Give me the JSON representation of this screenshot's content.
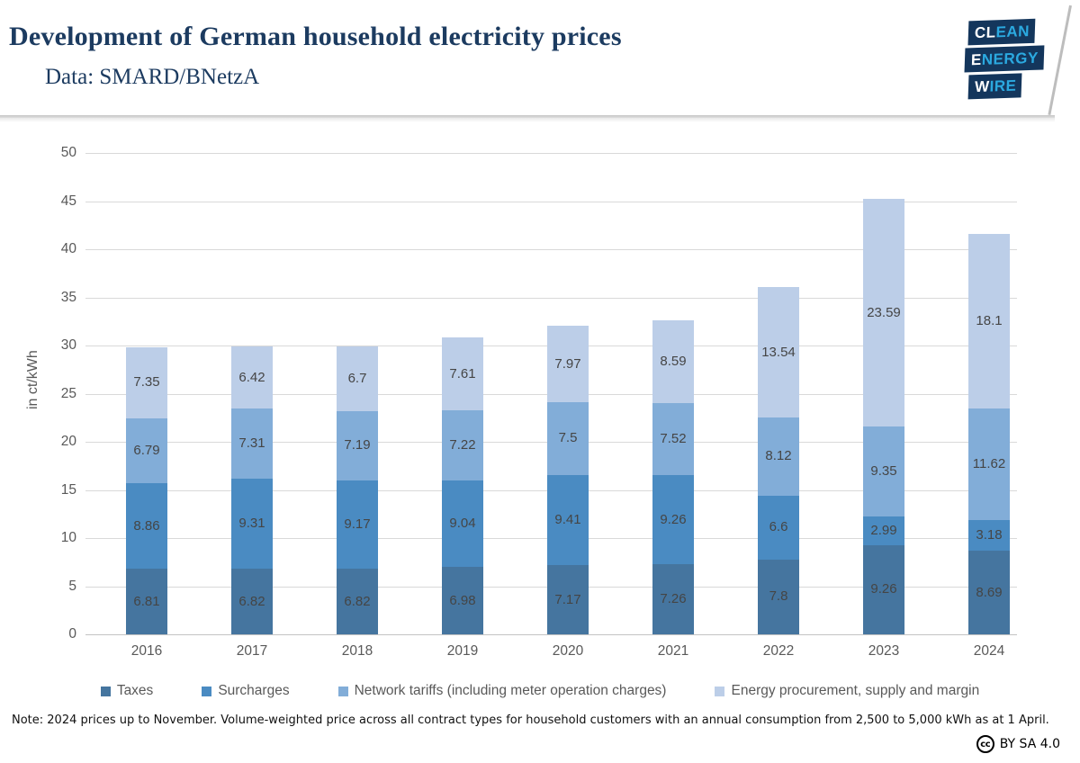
{
  "header": {
    "title": "Development of German household electricity prices",
    "subtitle": "Data: SMARD/BNetzA",
    "logo": {
      "lines": [
        {
          "white": "CL",
          "blue": "EAN"
        },
        {
          "white": "E",
          "blue": "NERGY"
        },
        {
          "white": "W",
          "blue": "IRE"
        }
      ],
      "box_color": "#14365C",
      "accent_color": "#2BA9E0"
    }
  },
  "chart_data": {
    "type": "bar",
    "stacked": true,
    "title": "Development of German household electricity prices",
    "xlabel": "",
    "ylabel": "in ct/kWh",
    "ylim": [
      0,
      50
    ],
    "ytick_step": 5,
    "grid": true,
    "legend_position": "bottom",
    "categories": [
      "2016",
      "2017",
      "2018",
      "2019",
      "2020",
      "2021",
      "2022",
      "2023",
      "2024"
    ],
    "series": [
      {
        "name": "Taxes",
        "color": "#45759F",
        "values": [
          6.81,
          6.82,
          6.82,
          6.98,
          7.17,
          7.26,
          7.8,
          9.26,
          8.69
        ]
      },
      {
        "name": "Surcharges",
        "color": "#4A8BC2",
        "values": [
          8.86,
          9.31,
          9.17,
          9.04,
          9.41,
          9.26,
          6.6,
          2.99,
          3.18
        ]
      },
      {
        "name": "Network tariffs (including meter operation charges)",
        "color": "#82ADD8",
        "values": [
          6.79,
          7.31,
          7.19,
          7.22,
          7.5,
          7.52,
          8.12,
          9.35,
          11.62
        ]
      },
      {
        "name": "Energy procurement, supply and margin",
        "color": "#BCCEE8",
        "values": [
          7.35,
          6.42,
          6.7,
          7.61,
          7.97,
          8.59,
          13.54,
          23.59,
          18.1
        ]
      }
    ]
  },
  "note": "Note: 2024 prices up to November. Volume-weighted price across all contract types for household customers with an annual consumption from 2,500 to 5,000 kWh as at 1 April.",
  "license": {
    "icon": "cc",
    "label": "BY SA 4.0"
  }
}
